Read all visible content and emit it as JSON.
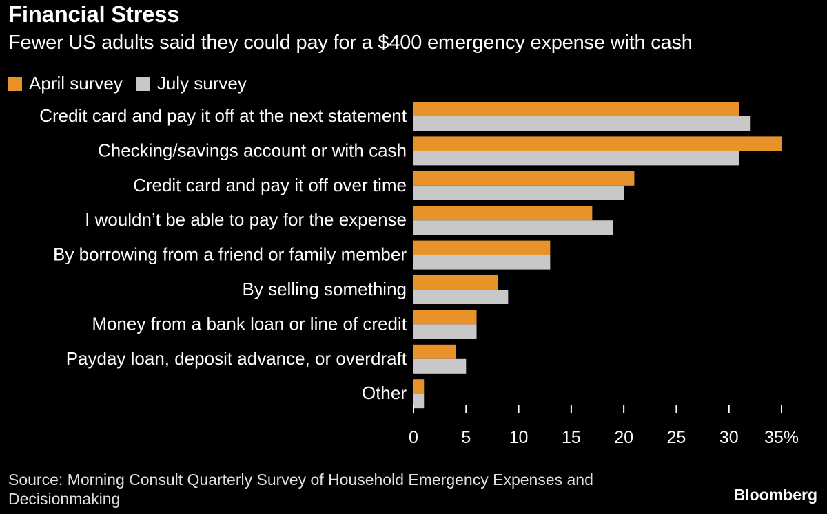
{
  "header": {
    "title": "Financial Stress",
    "subtitle": "Fewer US adults said they could pay for a $400 emergency expense with cash"
  },
  "colors": {
    "april": "#E8922A",
    "july": "#C8C8C8",
    "background": "#000000"
  },
  "chart_data": {
    "type": "bar",
    "orientation": "horizontal",
    "categories": [
      "Credit card and pay it off at the next statement",
      "Checking/savings account or with cash",
      "Credit card and pay it off over time",
      "I wouldn’t be able to pay for the expense",
      "By borrowing from a friend or family member",
      "By selling something",
      "Money from a bank loan or line of credit",
      "Payday loan, deposit advance, or overdraft",
      "Other"
    ],
    "series": [
      {
        "name": "April survey",
        "values": [
          31,
          35,
          21,
          17,
          13,
          8,
          6,
          4,
          1
        ]
      },
      {
        "name": "July survey",
        "values": [
          32,
          31,
          20,
          19,
          13,
          9,
          6,
          5,
          1
        ]
      }
    ],
    "xlim": [
      0,
      35
    ],
    "xticks": [
      0,
      5,
      10,
      15,
      20,
      25,
      30,
      35
    ],
    "xtick_labels": [
      "0",
      "5",
      "10",
      "15",
      "20",
      "25",
      "30",
      "35%"
    ],
    "legend_position": "top-left",
    "grid": false
  },
  "footer": {
    "source": "Source: Morning Consult Quarterly Survey of Household Emergency Expenses and Decisionmaking",
    "logo": "Bloomberg"
  }
}
